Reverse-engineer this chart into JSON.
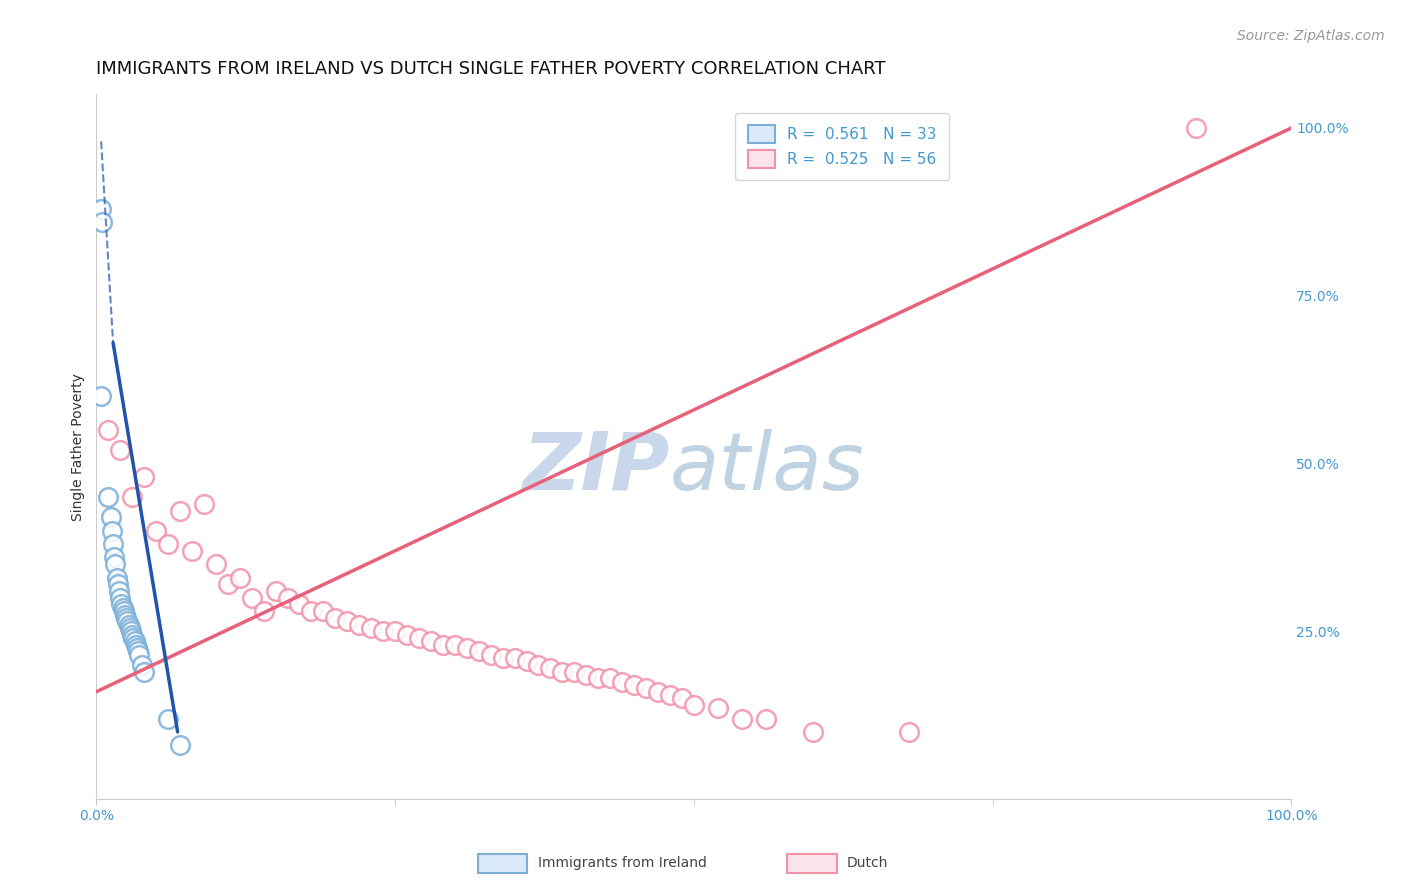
{
  "title": "IMMIGRANTS FROM IRELAND VS DUTCH SINGLE FATHER POVERTY CORRELATION CHART",
  "source": "Source: ZipAtlas.com",
  "ylabel": "Single Father Poverty",
  "legend": [
    {
      "label": "R =  0.561   N = 33"
    },
    {
      "label": "R =  0.525   N = 56"
    }
  ],
  "ireland_color": "#7ab0d8",
  "dutch_color": "#f093a8",
  "ireland_line_color": "#2255aa",
  "dutch_line_color": "#e8607a",
  "ireland_scatter": [
    [
      0.004,
      0.88
    ],
    [
      0.005,
      0.86
    ],
    [
      0.004,
      0.6
    ],
    [
      0.01,
      0.45
    ],
    [
      0.012,
      0.42
    ],
    [
      0.013,
      0.4
    ],
    [
      0.014,
      0.38
    ],
    [
      0.015,
      0.36
    ],
    [
      0.016,
      0.35
    ],
    [
      0.017,
      0.33
    ],
    [
      0.018,
      0.32
    ],
    [
      0.019,
      0.31
    ],
    [
      0.02,
      0.3
    ],
    [
      0.021,
      0.29
    ],
    [
      0.022,
      0.285
    ],
    [
      0.023,
      0.28
    ],
    [
      0.024,
      0.275
    ],
    [
      0.025,
      0.27
    ],
    [
      0.026,
      0.265
    ],
    [
      0.027,
      0.26
    ],
    [
      0.028,
      0.255
    ],
    [
      0.029,
      0.25
    ],
    [
      0.03,
      0.245
    ],
    [
      0.031,
      0.24
    ],
    [
      0.032,
      0.235
    ],
    [
      0.033,
      0.23
    ],
    [
      0.034,
      0.225
    ],
    [
      0.035,
      0.22
    ],
    [
      0.036,
      0.215
    ],
    [
      0.038,
      0.2
    ],
    [
      0.04,
      0.19
    ],
    [
      0.06,
      0.12
    ],
    [
      0.07,
      0.08
    ]
  ],
  "dutch_scatter": [
    [
      0.01,
      0.55
    ],
    [
      0.02,
      0.52
    ],
    [
      0.03,
      0.45
    ],
    [
      0.04,
      0.48
    ],
    [
      0.05,
      0.4
    ],
    [
      0.06,
      0.38
    ],
    [
      0.07,
      0.43
    ],
    [
      0.08,
      0.37
    ],
    [
      0.09,
      0.44
    ],
    [
      0.1,
      0.35
    ],
    [
      0.11,
      0.32
    ],
    [
      0.12,
      0.33
    ],
    [
      0.13,
      0.3
    ],
    [
      0.14,
      0.28
    ],
    [
      0.15,
      0.31
    ],
    [
      0.16,
      0.3
    ],
    [
      0.17,
      0.29
    ],
    [
      0.18,
      0.28
    ],
    [
      0.19,
      0.28
    ],
    [
      0.2,
      0.27
    ],
    [
      0.21,
      0.265
    ],
    [
      0.22,
      0.26
    ],
    [
      0.23,
      0.255
    ],
    [
      0.24,
      0.25
    ],
    [
      0.25,
      0.25
    ],
    [
      0.26,
      0.245
    ],
    [
      0.27,
      0.24
    ],
    [
      0.28,
      0.235
    ],
    [
      0.29,
      0.23
    ],
    [
      0.3,
      0.23
    ],
    [
      0.31,
      0.225
    ],
    [
      0.32,
      0.22
    ],
    [
      0.33,
      0.215
    ],
    [
      0.34,
      0.21
    ],
    [
      0.35,
      0.21
    ],
    [
      0.36,
      0.205
    ],
    [
      0.37,
      0.2
    ],
    [
      0.38,
      0.195
    ],
    [
      0.39,
      0.19
    ],
    [
      0.4,
      0.19
    ],
    [
      0.41,
      0.185
    ],
    [
      0.42,
      0.18
    ],
    [
      0.43,
      0.18
    ],
    [
      0.44,
      0.175
    ],
    [
      0.45,
      0.17
    ],
    [
      0.46,
      0.165
    ],
    [
      0.47,
      0.16
    ],
    [
      0.48,
      0.155
    ],
    [
      0.49,
      0.15
    ],
    [
      0.5,
      0.14
    ],
    [
      0.52,
      0.135
    ],
    [
      0.54,
      0.12
    ],
    [
      0.56,
      0.12
    ],
    [
      0.92,
      1.0
    ],
    [
      0.6,
      0.1
    ],
    [
      0.68,
      0.1
    ]
  ],
  "ireland_trendline_solid": [
    [
      0.014,
      0.68
    ],
    [
      0.068,
      0.1
    ]
  ],
  "ireland_trendline_dashed": [
    [
      0.004,
      0.98
    ],
    [
      0.014,
      0.68
    ]
  ],
  "dutch_trendline": [
    [
      0.0,
      0.16
    ],
    [
      1.0,
      1.0
    ]
  ],
  "xlim": [
    0.0,
    1.0
  ],
  "ylim": [
    0.0,
    1.05
  ],
  "background_color": "#ffffff",
  "grid_color": "#e0e0e0",
  "grid_style": "--",
  "title_fontsize": 13,
  "axis_label_fontsize": 10,
  "tick_fontsize": 10,
  "legend_fontsize": 11,
  "watermark_color": "#c8d8ea",
  "source_fontsize": 10,
  "right_tick_color": "#4499cc"
}
